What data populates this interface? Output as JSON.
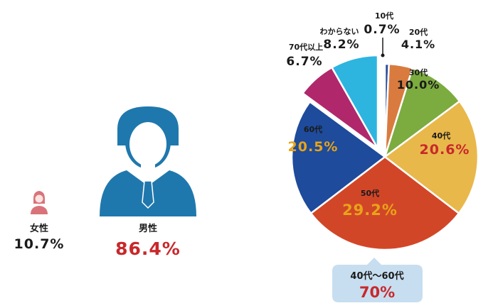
{
  "chart_data": {
    "type": "pie",
    "colors": {
      "accent_red": "#c8282b",
      "accent_orange": "#e8a418",
      "male_icon": "#1f78ad",
      "female_icon": "#d9737a",
      "callout_bg": "#c7def0"
    },
    "slices": [
      {
        "label": "10代",
        "value": 0.7,
        "display": "0.7%",
        "color": "#2b4f9e"
      },
      {
        "label": "20代",
        "value": 4.1,
        "display": "4.1%",
        "color": "#d97b3f"
      },
      {
        "label": "30代",
        "value": 10.0,
        "display": "10.0%",
        "color": "#7cab3f"
      },
      {
        "label": "40代",
        "value": 20.6,
        "display": "20.6%",
        "color": "#e8b84b"
      },
      {
        "label": "50代",
        "value": 29.2,
        "display": "29.2%",
        "color": "#d24628"
      },
      {
        "label": "60代",
        "value": 20.5,
        "display": "20.5%",
        "color": "#1e4b9b"
      },
      {
        "label": "70代以上",
        "value": 6.7,
        "display": "6.7%",
        "color": "#b0286b"
      },
      {
        "label": "わからない",
        "value": 8.2,
        "display": "8.2%",
        "color": "#2db5e0"
      }
    ],
    "callout": {
      "label": "40代～60代",
      "value": "70%"
    },
    "gender": [
      {
        "label": "女性",
        "value": 10.7,
        "display": "10.7%"
      },
      {
        "label": "男性",
        "value": 86.4,
        "display": "86.4%"
      }
    ]
  }
}
